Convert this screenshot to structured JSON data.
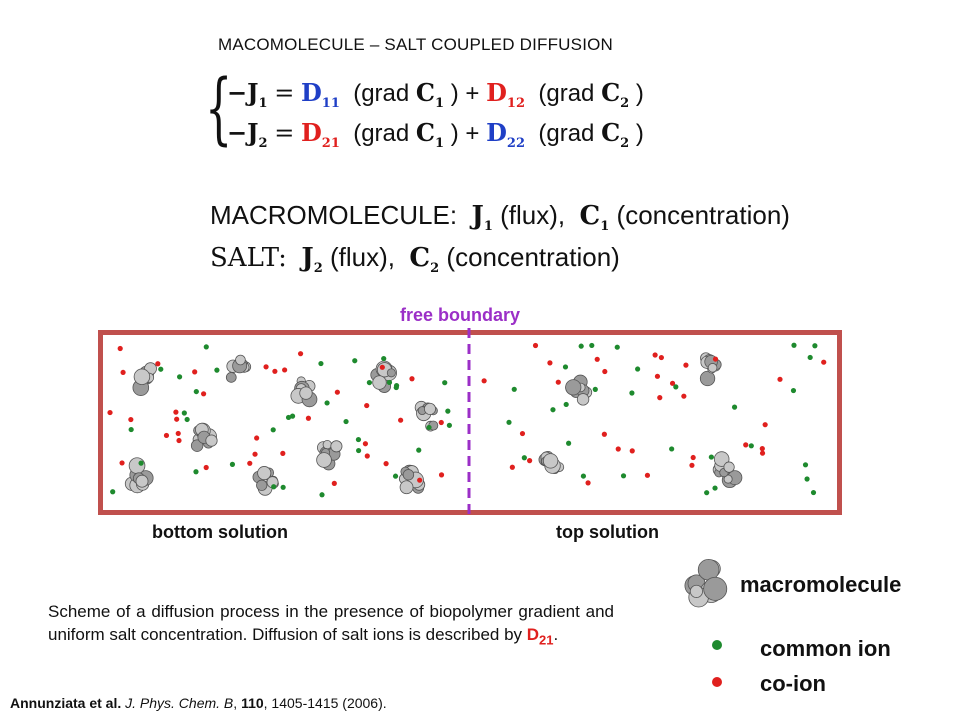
{
  "title": "MACOMOLECULE – SALT COUPLED DIFFUSION",
  "equations": {
    "line1": {
      "lhs": "−J",
      "lhs_sub": "1",
      "eq": "=",
      "d1": "D",
      "d1_sub": "11",
      "grad1": "(grad",
      "c1": "C",
      "c1_sub": "1",
      "plus": ") +",
      "d2": "D",
      "d2_sub": "12",
      "grad2": "(grad",
      "c2": "C",
      "c2_sub": "2",
      "close": ")"
    },
    "line2": {
      "lhs": "−J",
      "lhs_sub": "2",
      "eq": "=",
      "d1": "D",
      "d1_sub": "21",
      "grad1": "(grad",
      "c1": "C",
      "c1_sub": "1",
      "plus": ") +",
      "d2": "D",
      "d2_sub": "22",
      "grad2": "(grad",
      "c2": "C",
      "c2_sub": "2",
      "close": ")"
    }
  },
  "definitions": {
    "macro_label": "MACROMOLECULE:",
    "macro_j": "J",
    "macro_j_sub": "1",
    "macro_flux": "(flux),",
    "macro_c": "C",
    "macro_c_sub": "1",
    "macro_conc": "(concentration)",
    "salt_label": "SALT:",
    "salt_j": "J",
    "salt_j_sub": "2",
    "salt_flux": "(flux),",
    "salt_c": "C",
    "salt_c_sub": "2",
    "salt_conc": "(concentration)"
  },
  "boundary_label": "free boundary",
  "bottom_label": "bottom solution",
  "top_label": "top solution",
  "legend": {
    "macromolecule": "macromolecule",
    "common_ion": "common ion",
    "co_ion": "co-ion"
  },
  "caption": {
    "text": "Scheme of a diffusion process in the presence of biopolymer gradient and uniform salt concentration. Diffusion of salt ions is described by ",
    "d": "D",
    "d_sub": "21",
    "end": "."
  },
  "reference": {
    "authors": "Annunziata et al.",
    "journal": "J. Phys. Chem. B",
    "volume": "110",
    "pages": ", 1405-1415 (2006)."
  },
  "colors": {
    "tank_border": "#c0504d",
    "boundary": "#9b2fc7",
    "common_ion": "#1e8a2e",
    "co_ion": "#e0201e",
    "coefficient_blue": "#1f3fc6",
    "coefficient_red": "#e0201e"
  }
}
